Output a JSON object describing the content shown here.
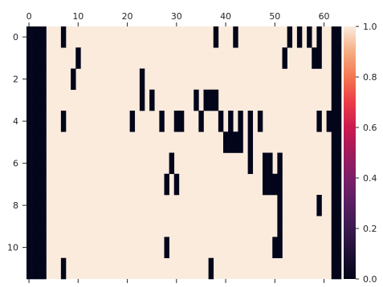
{
  "chart_data": {
    "type": "heatmap",
    "title": "",
    "xlabel": "",
    "ylabel": "",
    "n_rows": 12,
    "n_cols": 64,
    "value_range": [
      0,
      1
    ],
    "colormap": "rocket",
    "x_ticks": [
      0,
      10,
      20,
      30,
      40,
      50,
      60
    ],
    "x_tick_labels": [
      "0",
      "10",
      "20",
      "30",
      "40",
      "50",
      "60"
    ],
    "y_ticks": [
      0,
      2,
      4,
      6,
      8,
      10
    ],
    "y_tick_labels": [
      "0",
      "2",
      "4",
      "6",
      "8",
      "10"
    ],
    "colorbar_ticks": [
      0.0,
      0.2,
      0.4,
      0.6,
      0.8,
      1.0
    ],
    "colorbar_tick_labels": [
      "0.0",
      "0.2",
      "0.4",
      "0.6",
      "0.8",
      "1.0"
    ],
    "colors": {
      "low": "#03051a",
      "high": "#faebdd"
    },
    "zero_cells": [
      [
        0,
        [
          0,
          1,
          2,
          3,
          7,
          38,
          42,
          53,
          55,
          57,
          59,
          62,
          63
        ]
      ],
      [
        1,
        [
          0,
          1,
          2,
          3,
          10,
          52,
          58,
          59,
          62,
          63
        ]
      ],
      [
        2,
        [
          0,
          1,
          2,
          3,
          9,
          23,
          62,
          63
        ]
      ],
      [
        3,
        [
          0,
          1,
          2,
          3,
          23,
          25,
          34,
          36,
          37,
          38,
          62,
          63
        ]
      ],
      [
        4,
        [
          0,
          1,
          2,
          3,
          7,
          21,
          27,
          30,
          31,
          35,
          39,
          41,
          43,
          45,
          47,
          59,
          61,
          62,
          63
        ]
      ],
      [
        5,
        [
          0,
          1,
          2,
          3,
          40,
          41,
          42,
          43,
          45,
          62,
          63
        ]
      ],
      [
        6,
        [
          0,
          1,
          2,
          3,
          29,
          45,
          48,
          49,
          51,
          62,
          63
        ]
      ],
      [
        7,
        [
          0,
          1,
          2,
          3,
          28,
          30,
          48,
          49,
          50,
          51,
          62,
          63
        ]
      ],
      [
        8,
        [
          0,
          1,
          2,
          3,
          51,
          59,
          62,
          63
        ]
      ],
      [
        9,
        [
          0,
          1,
          2,
          3,
          51,
          62,
          63
        ]
      ],
      [
        10,
        [
          0,
          1,
          2,
          3,
          28,
          50,
          51,
          62,
          63
        ]
      ],
      [
        11,
        [
          0,
          1,
          2,
          3,
          7,
          37,
          62,
          63
        ]
      ]
    ]
  }
}
